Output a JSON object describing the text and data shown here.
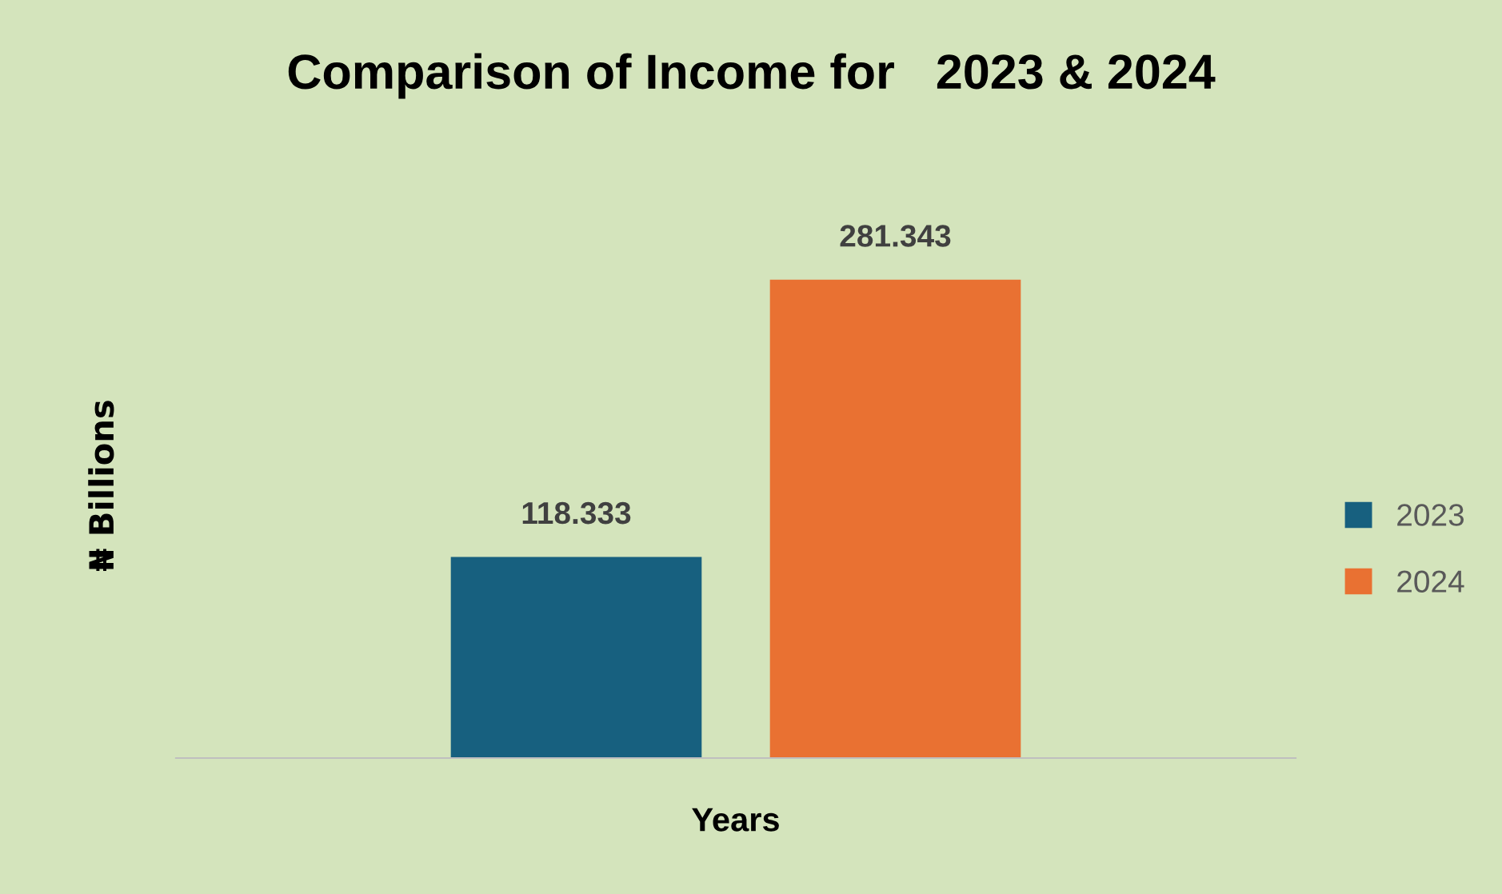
{
  "chart_data": {
    "type": "bar",
    "title": "Comparison of Income for   2023 & 2024",
    "xlabel": "Years",
    "ylabel": "₦ Billions",
    "categories": [
      null
    ],
    "series": [
      {
        "name": "2023",
        "color": "#17607f",
        "values": [
          118.333
        ]
      },
      {
        "name": "2024",
        "color": "#e97132",
        "values": [
          281.343
        ]
      }
    ],
    "data_labels": true,
    "legend": "right",
    "grid": false,
    "tick_labels": false
  }
}
